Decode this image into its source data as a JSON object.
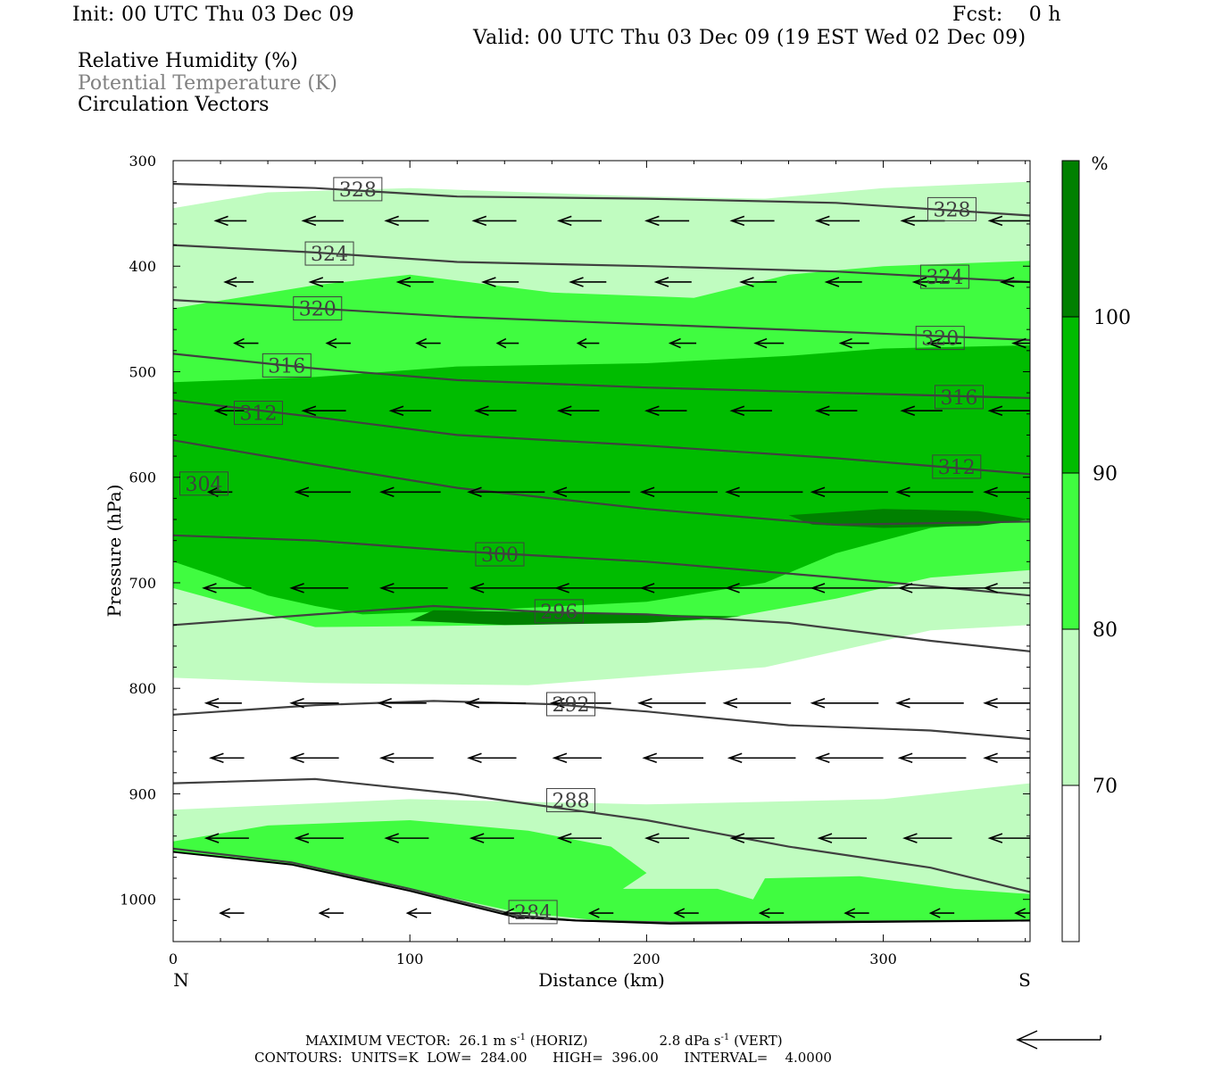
{
  "header": {
    "init": "Init: 00 UTC Thu 03 Dec 09",
    "fcst": "Fcst:    0 h",
    "valid": "Valid: 00 UTC Thu 03 Dec 09 (19 EST Wed 02 Dec 09)"
  },
  "fields": [
    {
      "label": "Relative Humidity (%)",
      "color": "#000000"
    },
    {
      "label": "Potential Temperature (K)",
      "color": "#808080"
    },
    {
      "label": "Circulation Vectors",
      "color": "#000000"
    }
  ],
  "chart_data": {
    "type": "heatmap",
    "xlabel": "Distance (km)",
    "ylabel": "Pressure (hPa)",
    "xlim": [
      0,
      362
    ],
    "ylim": [
      300,
      1040
    ],
    "y_scale": "linear, inverted (pressure increases downward)",
    "x_ticks": [
      0,
      100,
      200,
      300
    ],
    "y_ticks": [
      300,
      400,
      500,
      600,
      700,
      800,
      900,
      1000
    ],
    "x_end_labels": {
      "left": "N",
      "right": "S"
    },
    "colorbar": {
      "unit": "%",
      "levels": [
        70,
        80,
        90,
        100
      ],
      "colors": [
        "#ffffff",
        "#c0fcc0",
        "#40fc40",
        "#00bc00",
        "#008000"
      ]
    },
    "rh_regions": [
      {
        "level": "70-80",
        "color": "#c0fcc0",
        "outline_km_hpa": [
          [
            0,
            345
          ],
          [
            40,
            330
          ],
          [
            100,
            326
          ],
          [
            200,
            334
          ],
          [
            250,
            336
          ],
          [
            300,
            326
          ],
          [
            362,
            320
          ],
          [
            362,
            740
          ],
          [
            320,
            745
          ],
          [
            250,
            780
          ],
          [
            150,
            797
          ],
          [
            60,
            795
          ],
          [
            0,
            790
          ]
        ]
      },
      {
        "level": "70-80",
        "color": "#c0fcc0",
        "outline_km_hpa": [
          [
            0,
            915
          ],
          [
            100,
            905
          ],
          [
            200,
            910
          ],
          [
            300,
            905
          ],
          [
            362,
            890
          ],
          [
            362,
            1020
          ],
          [
            250,
            1022
          ],
          [
            180,
            1020
          ],
          [
            140,
            1015
          ],
          [
            80,
            990
          ],
          [
            30,
            970
          ],
          [
            0,
            960
          ]
        ]
      },
      {
        "level": "80-90",
        "color": "#40fc40",
        "outline_km_hpa": [
          [
            0,
            440
          ],
          [
            60,
            418
          ],
          [
            100,
            408
          ],
          [
            160,
            425
          ],
          [
            220,
            430
          ],
          [
            260,
            408
          ],
          [
            300,
            400
          ],
          [
            362,
            395
          ],
          [
            362,
            688
          ],
          [
            320,
            695
          ],
          [
            280,
            715
          ],
          [
            230,
            735
          ],
          [
            150,
            740
          ],
          [
            60,
            742
          ],
          [
            0,
            705
          ]
        ]
      },
      {
        "level": "80-90",
        "color": "#40fc40",
        "outline_km_hpa": [
          [
            0,
            945
          ],
          [
            40,
            930
          ],
          [
            100,
            925
          ],
          [
            150,
            935
          ],
          [
            185,
            950
          ],
          [
            200,
            975
          ],
          [
            190,
            990
          ],
          [
            230,
            990
          ],
          [
            245,
            1000
          ],
          [
            250,
            980
          ],
          [
            290,
            978
          ],
          [
            330,
            990
          ],
          [
            362,
            995
          ],
          [
            362,
            1020
          ],
          [
            250,
            1022
          ],
          [
            180,
            1020
          ],
          [
            145,
            1012
          ],
          [
            100,
            990
          ],
          [
            50,
            970
          ],
          [
            0,
            955
          ]
        ]
      },
      {
        "level": "90-100",
        "color": "#00bc00",
        "outline_km_hpa": [
          [
            0,
            510
          ],
          [
            60,
            505
          ],
          [
            120,
            495
          ],
          [
            200,
            492
          ],
          [
            260,
            485
          ],
          [
            300,
            478
          ],
          [
            362,
            475
          ],
          [
            362,
            640
          ],
          [
            320,
            648
          ],
          [
            280,
            672
          ],
          [
            250,
            700
          ],
          [
            200,
            718
          ],
          [
            130,
            726
          ],
          [
            80,
            730
          ],
          [
            60,
            722
          ],
          [
            40,
            712
          ],
          [
            20,
            695
          ],
          [
            0,
            680
          ]
        ]
      },
      {
        "level": ">=100",
        "color": "#008000",
        "outline_km_hpa": [
          [
            260,
            636
          ],
          [
            300,
            630
          ],
          [
            340,
            632
          ],
          [
            362,
            640
          ],
          [
            340,
            646
          ],
          [
            300,
            648
          ],
          [
            270,
            645
          ]
        ]
      },
      {
        "level": ">=100",
        "color": "#008000",
        "outline_km_hpa": [
          [
            110,
            726
          ],
          [
            160,
            728
          ],
          [
            200,
            730
          ],
          [
            240,
            732
          ],
          [
            200,
            738
          ],
          [
            140,
            740
          ],
          [
            100,
            736
          ]
        ]
      }
    ],
    "theta_contours_K": [
      {
        "label": "328",
        "points": [
          [
            0,
            322
          ],
          [
            60,
            326
          ],
          [
            120,
            334
          ],
          [
            200,
            336
          ],
          [
            280,
            340
          ],
          [
            362,
            352
          ]
        ]
      },
      {
        "label": "324",
        "points": [
          [
            0,
            380
          ],
          [
            60,
            387
          ],
          [
            120,
            396
          ],
          [
            200,
            400
          ],
          [
            280,
            405
          ],
          [
            362,
            415
          ]
        ]
      },
      {
        "label": "320",
        "points": [
          [
            0,
            432
          ],
          [
            60,
            440
          ],
          [
            120,
            448
          ],
          [
            200,
            455
          ],
          [
            280,
            462
          ],
          [
            362,
            470
          ]
        ]
      },
      {
        "label": "316",
        "points": [
          [
            0,
            483
          ],
          [
            60,
            497
          ],
          [
            120,
            508
          ],
          [
            200,
            515
          ],
          [
            280,
            520
          ],
          [
            362,
            525
          ]
        ]
      },
      {
        "label": "312",
        "points": [
          [
            0,
            527
          ],
          [
            60,
            543
          ],
          [
            120,
            560
          ],
          [
            200,
            570
          ],
          [
            280,
            582
          ],
          [
            362,
            597
          ]
        ]
      },
      {
        "label": "304",
        "points": [
          [
            0,
            565
          ],
          [
            60,
            588
          ],
          [
            120,
            610
          ],
          [
            200,
            630
          ],
          [
            280,
            645
          ],
          [
            362,
            642
          ]
        ]
      },
      {
        "label": "300",
        "points": [
          [
            0,
            655
          ],
          [
            60,
            660
          ],
          [
            120,
            670
          ],
          [
            200,
            680
          ],
          [
            280,
            695
          ],
          [
            362,
            712
          ]
        ]
      },
      {
        "label": "296",
        "points": [
          [
            0,
            740
          ],
          [
            60,
            730
          ],
          [
            110,
            722
          ],
          [
            160,
            728
          ],
          [
            200,
            730
          ],
          [
            260,
            738
          ],
          [
            320,
            755
          ],
          [
            362,
            765
          ]
        ]
      },
      {
        "label": "292",
        "points": [
          [
            0,
            825
          ],
          [
            60,
            816
          ],
          [
            110,
            812
          ],
          [
            160,
            815
          ],
          [
            200,
            822
          ],
          [
            260,
            835
          ],
          [
            320,
            840
          ],
          [
            362,
            848
          ]
        ]
      },
      {
        "label": "288",
        "points": [
          [
            0,
            890
          ],
          [
            60,
            886
          ],
          [
            120,
            900
          ],
          [
            200,
            925
          ],
          [
            260,
            950
          ],
          [
            320,
            970
          ],
          [
            362,
            993
          ]
        ]
      },
      {
        "label": "284",
        "points": [
          [
            0,
            952
          ],
          [
            50,
            965
          ],
          [
            100,
            990
          ],
          [
            145,
            1015
          ],
          [
            170,
            1020
          ],
          [
            210,
            1022
          ],
          [
            362,
            1020
          ]
        ]
      }
    ],
    "contour_labels_placed": [
      {
        "label": "328",
        "km": 78,
        "hpa": 327
      },
      {
        "label": "328",
        "km": 329,
        "hpa": 346
      },
      {
        "label": "324",
        "km": 66,
        "hpa": 388
      },
      {
        "label": "324",
        "km": 326,
        "hpa": 410
      },
      {
        "label": "320",
        "km": 61,
        "hpa": 440
      },
      {
        "label": "320",
        "km": 324,
        "hpa": 468
      },
      {
        "label": "316",
        "km": 48,
        "hpa": 494
      },
      {
        "label": "316",
        "km": 332,
        "hpa": 524
      },
      {
        "label": "312",
        "km": 36,
        "hpa": 539
      },
      {
        "label": "312",
        "km": 331,
        "hpa": 590
      },
      {
        "label": "304",
        "km": 13,
        "hpa": 606
      },
      {
        "label": "300",
        "km": 138,
        "hpa": 673
      },
      {
        "label": "296",
        "km": 163,
        "hpa": 727
      },
      {
        "label": "292",
        "km": 168,
        "hpa": 815
      },
      {
        "label": "288",
        "km": 168,
        "hpa": 906
      },
      {
        "label": "284",
        "km": 152,
        "hpa": 1012
      }
    ],
    "surface_pressure_hpa": [
      [
        0,
        955
      ],
      [
        50,
        967
      ],
      [
        100,
        992
      ],
      [
        145,
        1017
      ],
      [
        170,
        1020
      ],
      [
        210,
        1023
      ],
      [
        362,
        1020
      ]
    ],
    "circulation_vectors": {
      "direction": "northward (toward N, left)",
      "rows": [
        {
          "hpa": 357,
          "km": [
            18,
            55,
            90,
            127,
            163,
            200,
            236,
            272,
            308,
            345
          ],
          "len_km": [
            13,
            17,
            18,
            18,
            18,
            18,
            18,
            18,
            18,
            18
          ]
        },
        {
          "hpa": 415,
          "km": [
            22,
            58,
            95,
            131,
            168,
            204,
            240,
            276,
            313,
            350
          ],
          "len_km": [
            12,
            14,
            15,
            15,
            15,
            15,
            15,
            15,
            15,
            15
          ]
        },
        {
          "hpa": 473,
          "km": [
            26,
            65,
            103,
            137,
            171,
            210,
            246,
            282,
            319,
            355
          ],
          "len_km": [
            10,
            10,
            10,
            9,
            9,
            11,
            12,
            12,
            14,
            16
          ]
        },
        {
          "hpa": 537,
          "km": [
            18,
            55,
            92,
            128,
            163,
            200,
            236,
            272,
            308,
            345
          ],
          "len_km": [
            12,
            18,
            17,
            17,
            17,
            17,
            17,
            17,
            17,
            17
          ]
        },
        {
          "hpa": 614,
          "km": [
            15,
            52,
            88,
            125,
            161,
            198,
            234,
            270,
            306,
            343
          ],
          "len_km": [
            10,
            23,
            25,
            32,
            32,
            32,
            32,
            32,
            32,
            32
          ]
        },
        {
          "hpa": 705,
          "km": [
            13,
            50,
            88,
            126,
            162,
            198,
            234,
            270,
            307,
            343
          ],
          "len_km": [
            20,
            24,
            28,
            40,
            38,
            38,
            38,
            38,
            38,
            38
          ]
        },
        {
          "hpa": 814,
          "km": [
            14,
            50,
            87,
            124,
            160,
            197,
            233,
            270,
            306,
            343
          ],
          "len_km": [
            15,
            20,
            20,
            25,
            25,
            28,
            28,
            28,
            28,
            28
          ]
        },
        {
          "hpa": 866,
          "km": [
            16,
            50,
            88,
            125,
            161,
            199,
            235,
            272,
            307,
            343
          ],
          "len_km": [
            14,
            20,
            22,
            20,
            20,
            25,
            28,
            28,
            28,
            28
          ]
        },
        {
          "hpa": 942,
          "km": [
            14,
            52,
            90,
            126,
            163,
            200,
            236,
            273,
            309,
            345
          ],
          "len_km": [
            18,
            20,
            18,
            18,
            18,
            18,
            18,
            20,
            20,
            20
          ]
        },
        {
          "hpa": 1013,
          "km": [
            20,
            62,
            99,
            140,
            176,
            212,
            248,
            284,
            320,
            356
          ],
          "len_km": [
            10,
            10,
            10,
            10,
            10,
            10,
            10,
            10,
            10,
            10
          ]
        }
      ]
    }
  },
  "colorbar_unit": "%",
  "colorbar_ticks": [
    "100",
    "90",
    "80",
    "70"
  ],
  "footer": {
    "max_vector_line": "MAXIMUM VECTOR:  26.1 m s",
    "horiz": "-1",
    "horiz_tail": " (HORIZ)",
    "vert_value": "2.8 dPa s",
    "vert_sup": "-1",
    "vert_tail": " (VERT)",
    "contours_line": "CONTOURS:  UNITS=K  LOW=  284.00      HIGH=  396.00      INTERVAL=    4.0000"
  }
}
